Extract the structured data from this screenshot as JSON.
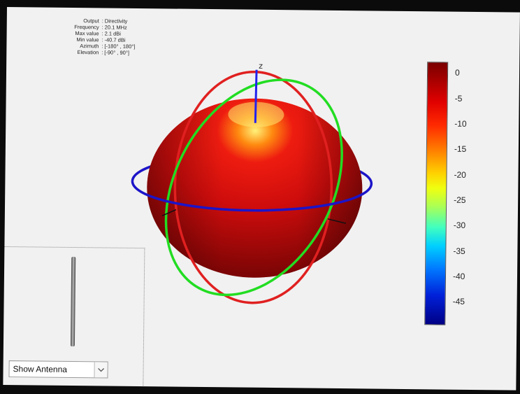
{
  "info": {
    "rows": [
      {
        "key": "Output",
        "value": "Directivity"
      },
      {
        "key": "Frequency",
        "value": "20.1 MHz"
      },
      {
        "key": "Max value",
        "value": "2.1 dBi"
      },
      {
        "key": "Min value",
        "value": "-40.7 dBi"
      },
      {
        "key": "Azimuth",
        "value": "[-180° , 180°]"
      },
      {
        "key": "Elevation",
        "value": "[-90° , 90°]"
      }
    ]
  },
  "plot": {
    "z_axis_label": "z"
  },
  "colorbar": {
    "ticks": [
      "0",
      "-5",
      "-10",
      "-15",
      "-20",
      "-25",
      "-30",
      "-35",
      "-40",
      "-45"
    ]
  },
  "controls": {
    "antenna_dropdown": "Show Antenna"
  },
  "colors": {
    "pattern": "#d91010",
    "elevation_ring_red": "#e02020",
    "elevation_ring_green": "#22dd22",
    "azimuth_ring": "#1c14c8"
  },
  "icons": {
    "dropdown_arrow": "chevron-down-icon"
  }
}
